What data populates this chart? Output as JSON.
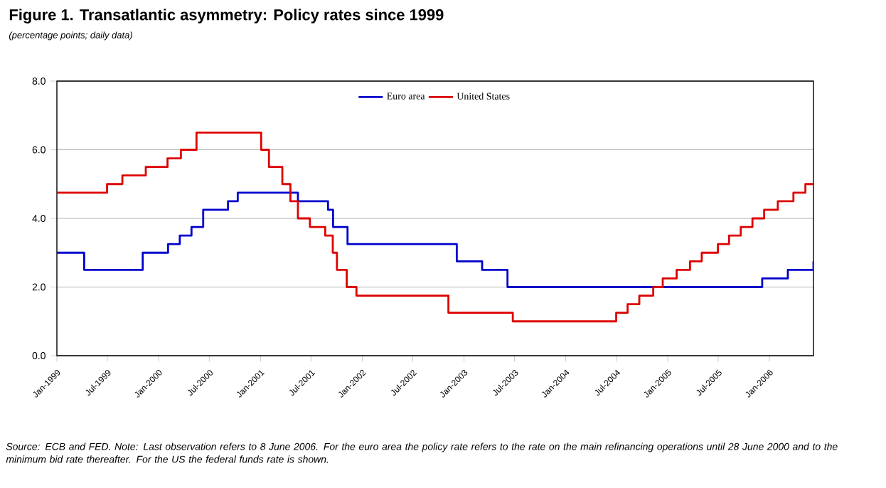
{
  "chart_data": {
    "type": "step",
    "title": "Figure 1. Transatlantic asymmetry: Policy rates since 1999",
    "subtitle": "(percentage points; daily data)",
    "series": [
      {
        "name": "Euro area",
        "color": "#0000cc",
        "x": [
          "1999-01-01",
          "1999-04-09",
          "1999-11-05",
          "2000-02-04",
          "2000-03-17",
          "2000-04-28",
          "2000-06-09",
          "2000-09-06",
          "2000-10-11",
          "2001-05-15",
          "2001-08-31",
          "2001-09-18",
          "2001-11-09",
          "2002-12-06",
          "2003-03-07",
          "2003-06-06",
          "2005-12-06",
          "2006-03-08",
          "2006-06-08"
        ],
        "values": [
          3.0,
          2.5,
          3.0,
          3.25,
          3.5,
          3.75,
          4.25,
          4.5,
          4.75,
          4.5,
          4.25,
          3.75,
          3.25,
          2.75,
          2.5,
          2.0,
          2.25,
          2.5,
          2.75
        ]
      },
      {
        "name": "United States",
        "color": "#dd0000",
        "x": [
          "1999-01-01",
          "1999-06-30",
          "1999-08-24",
          "1999-11-16",
          "2000-02-02",
          "2000-03-21",
          "2000-05-16",
          "2001-01-03",
          "2001-01-31",
          "2001-03-20",
          "2001-04-18",
          "2001-05-15",
          "2001-06-27",
          "2001-08-21",
          "2001-09-17",
          "2001-10-02",
          "2001-11-06",
          "2001-12-11",
          "2002-11-06",
          "2003-06-25",
          "2004-06-30",
          "2004-08-10",
          "2004-09-21",
          "2004-11-10",
          "2004-12-14",
          "2005-02-02",
          "2005-03-22",
          "2005-05-03",
          "2005-06-30",
          "2005-08-09",
          "2005-09-20",
          "2005-11-01",
          "2005-12-13",
          "2006-01-31",
          "2006-03-28",
          "2006-05-10",
          "2006-06-08"
        ],
        "values": [
          4.75,
          5.0,
          5.25,
          5.5,
          5.75,
          6.0,
          6.5,
          6.0,
          5.5,
          5.0,
          4.5,
          4.0,
          3.75,
          3.5,
          3.0,
          2.5,
          2.0,
          1.75,
          1.25,
          1.0,
          1.25,
          1.5,
          1.75,
          2.0,
          2.25,
          2.5,
          2.75,
          3.0,
          3.25,
          3.5,
          3.75,
          4.0,
          4.25,
          4.5,
          4.75,
          5.0,
          5.0
        ]
      }
    ],
    "xlim": [
      "1999-01-01",
      "2006-06-08"
    ],
    "xticks": [
      {
        "value": "1999-01-01",
        "label": "Jan-1999"
      },
      {
        "value": "1999-07-01",
        "label": "Jul-1999"
      },
      {
        "value": "2000-01-01",
        "label": "Jan-2000"
      },
      {
        "value": "2000-07-01",
        "label": "Jul-2000"
      },
      {
        "value": "2001-01-01",
        "label": "Jan-2001"
      },
      {
        "value": "2001-07-01",
        "label": "Jul-2001"
      },
      {
        "value": "2002-01-01",
        "label": "Jan-2002"
      },
      {
        "value": "2002-07-01",
        "label": "Jul-2002"
      },
      {
        "value": "2003-01-01",
        "label": "Jan-2003"
      },
      {
        "value": "2003-07-01",
        "label": "Jul-2003"
      },
      {
        "value": "2004-01-01",
        "label": "Jan-2004"
      },
      {
        "value": "2004-07-01",
        "label": "Jul-2004"
      },
      {
        "value": "2005-01-01",
        "label": "Jan-2005"
      },
      {
        "value": "2005-07-01",
        "label": "Jul-2005"
      },
      {
        "value": "2006-01-01",
        "label": "Jan-2006"
      }
    ],
    "ylim": [
      0,
      8
    ],
    "yticks": [
      {
        "value": 0,
        "label": "0.0"
      },
      {
        "value": 2,
        "label": "2.0"
      },
      {
        "value": 4,
        "label": "4.0"
      },
      {
        "value": 6,
        "label": "6.0"
      },
      {
        "value": 8,
        "label": "8.0"
      }
    ],
    "grid": "y",
    "legend": "top",
    "line_style": "solid",
    "annotations": [
      "Source: ECB and FED. Note: Last observation refers to 8 June 2006. For the euro area the policy rate refers to the rate on the main refinancing operations until 28 June 2000 and to the minimum bid rate thereafter. For the US the federal funds rate is shown."
    ]
  }
}
